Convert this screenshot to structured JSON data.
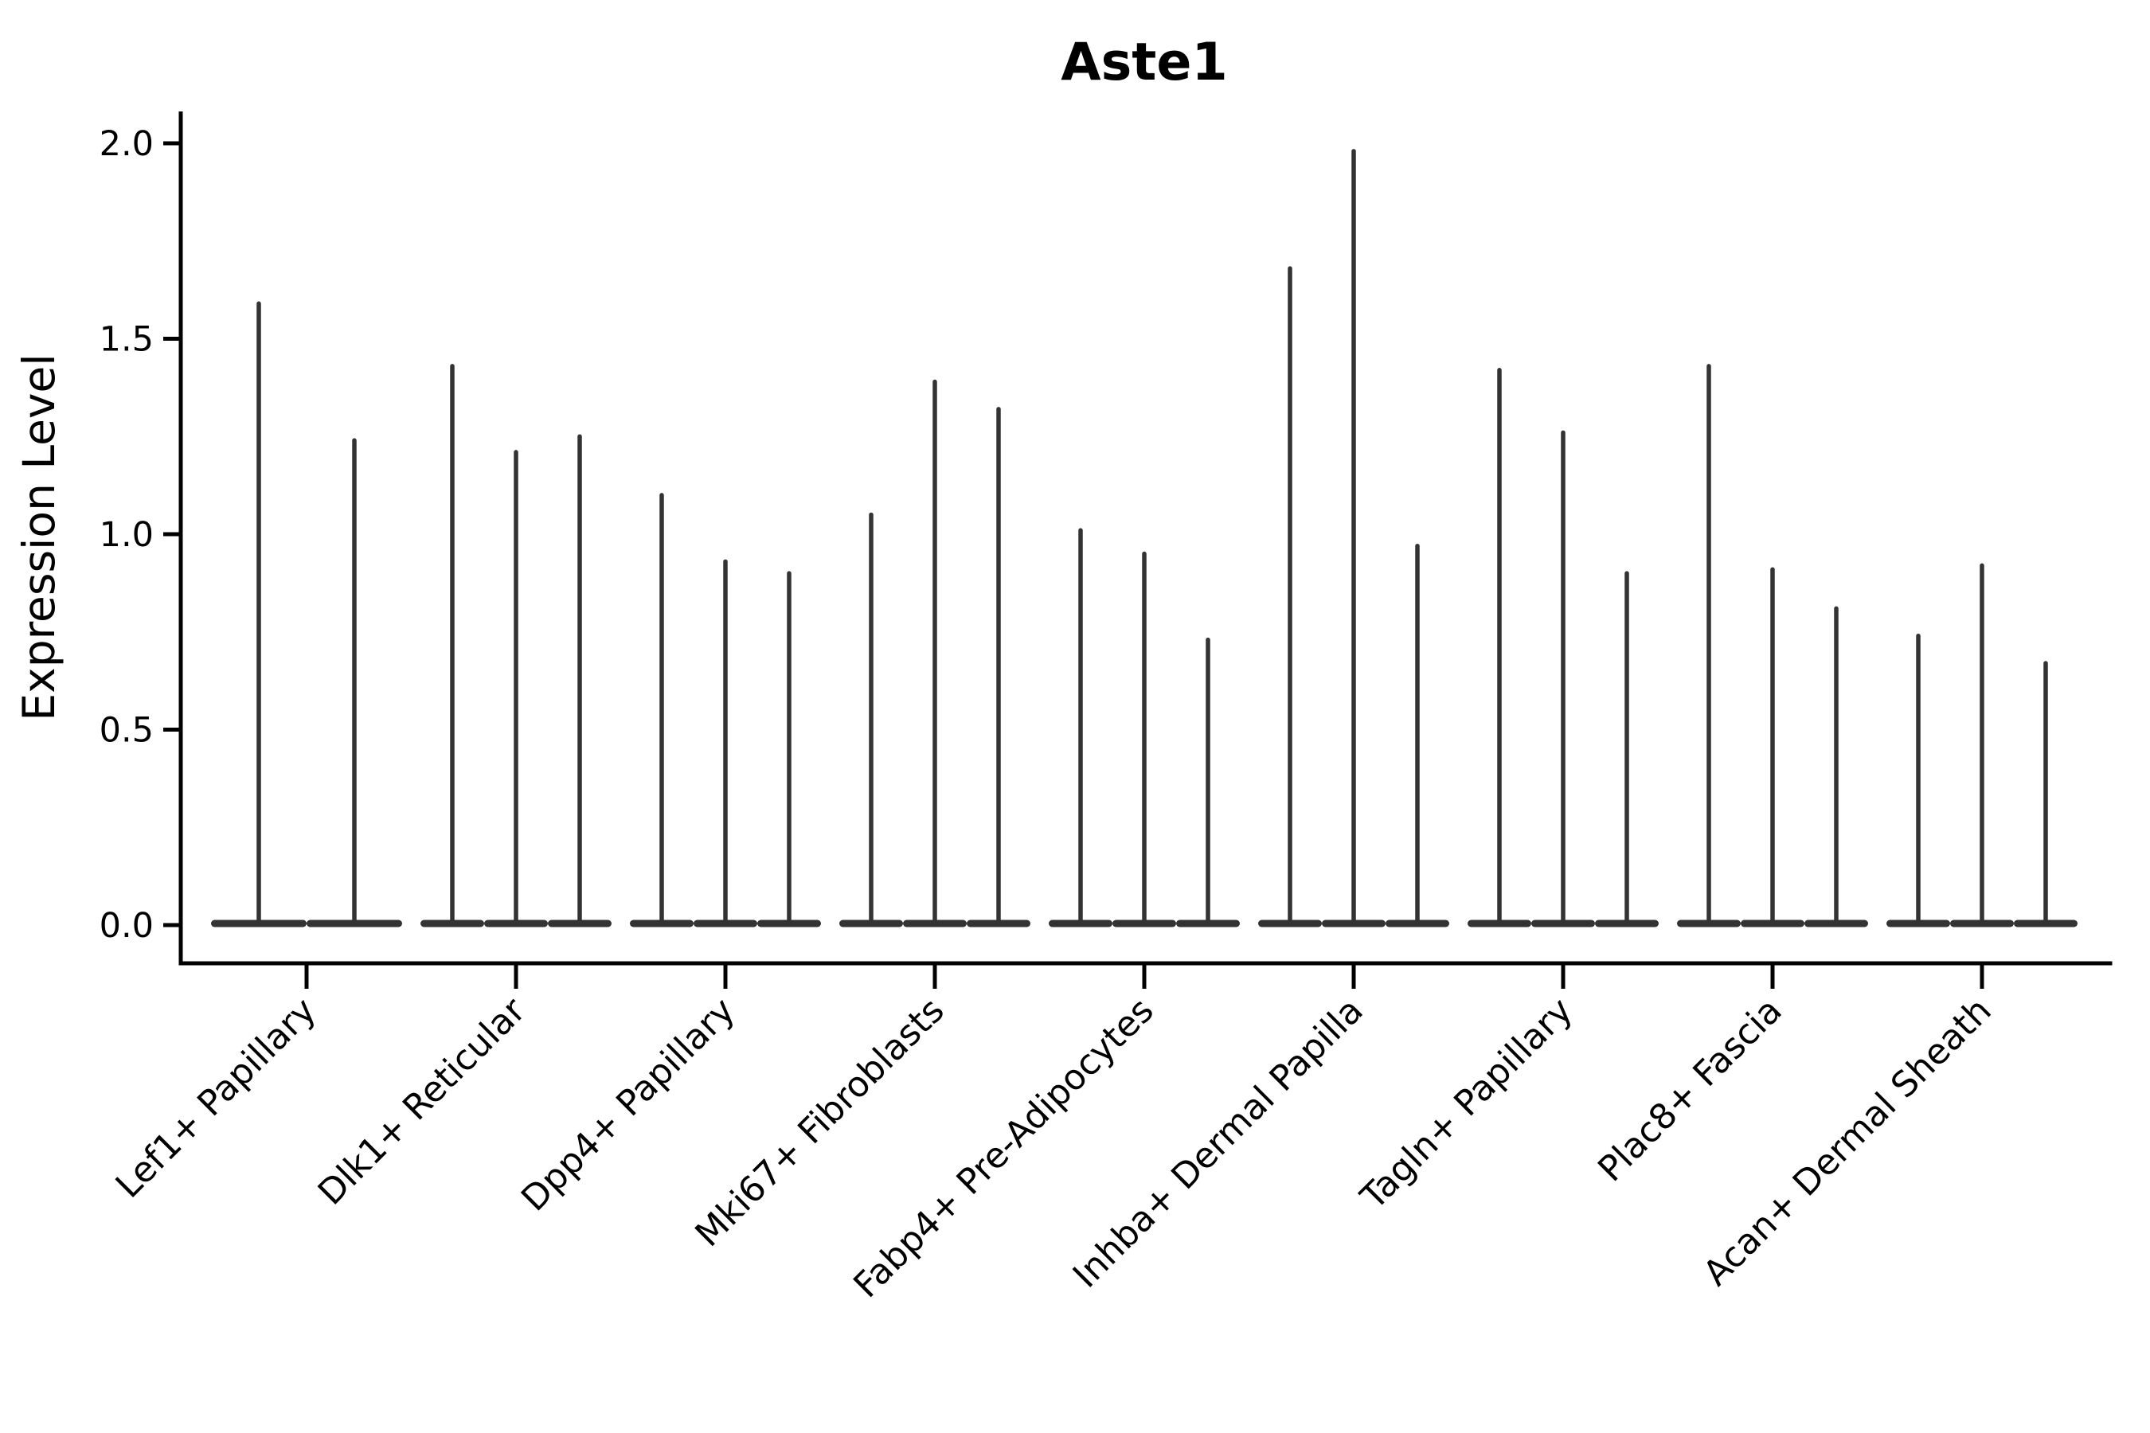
{
  "figure": {
    "title": "Aste1",
    "y_axis_label": "Expression Level",
    "background_color": "#ffffff",
    "axis_color": "#000000",
    "violin_color": "#333333"
  },
  "chart_data": {
    "type": "violin",
    "title": "Aste1",
    "xlabel": "",
    "ylabel": "Expression Level",
    "ylim": [
      0,
      2.05
    ],
    "yticks": [
      0.0,
      0.5,
      1.0,
      1.5,
      2.0
    ],
    "ytick_labels": [
      "0.0",
      "0.5",
      "1.0",
      "1.5",
      "2.0"
    ],
    "grid": false,
    "legend_position": "none",
    "shape_note": "Each violin is needle-shaped: a wide flat density mass at expression 0 plus a thin vertical spike reaching the maximum expression value",
    "categories": [
      "Lef1+ Papillary",
      "Dlk1+ Reticular",
      "Dpp4+ Papillary",
      "Mki67+ Fibroblasts",
      "Fabp4+ Pre-Adipocytes",
      "Inhba+ Dermal Papilla",
      "Tagln+ Papillary",
      "Plac8+ Fascia",
      "Acan+ Dermal Sheath"
    ],
    "groups": [
      {
        "label": "Lef1+ Papillary",
        "violin_max_values": [
          1.59,
          1.24
        ]
      },
      {
        "label": "Dlk1+ Reticular",
        "violin_max_values": [
          1.43,
          1.21,
          1.25
        ]
      },
      {
        "label": "Dpp4+ Papillary",
        "violin_max_values": [
          1.1,
          0.93,
          0.9
        ]
      },
      {
        "label": "Mki67+ Fibroblasts",
        "violin_max_values": [
          1.05,
          1.39,
          1.32
        ]
      },
      {
        "label": "Fabp4+ Pre-Adipocytes",
        "violin_max_values": [
          1.01,
          0.95,
          0.73
        ]
      },
      {
        "label": "Inhba+ Dermal Papilla",
        "violin_max_values": [
          1.68,
          1.98,
          0.97
        ]
      },
      {
        "label": "Tagln+ Papillary",
        "violin_max_values": [
          1.42,
          1.26,
          0.9
        ]
      },
      {
        "label": "Plac8+ Fascia",
        "violin_max_values": [
          1.43,
          0.91,
          0.81
        ]
      },
      {
        "label": "Acan+ Dermal Sheath",
        "violin_max_values": [
          0.74,
          0.92,
          0.67
        ]
      }
    ]
  }
}
